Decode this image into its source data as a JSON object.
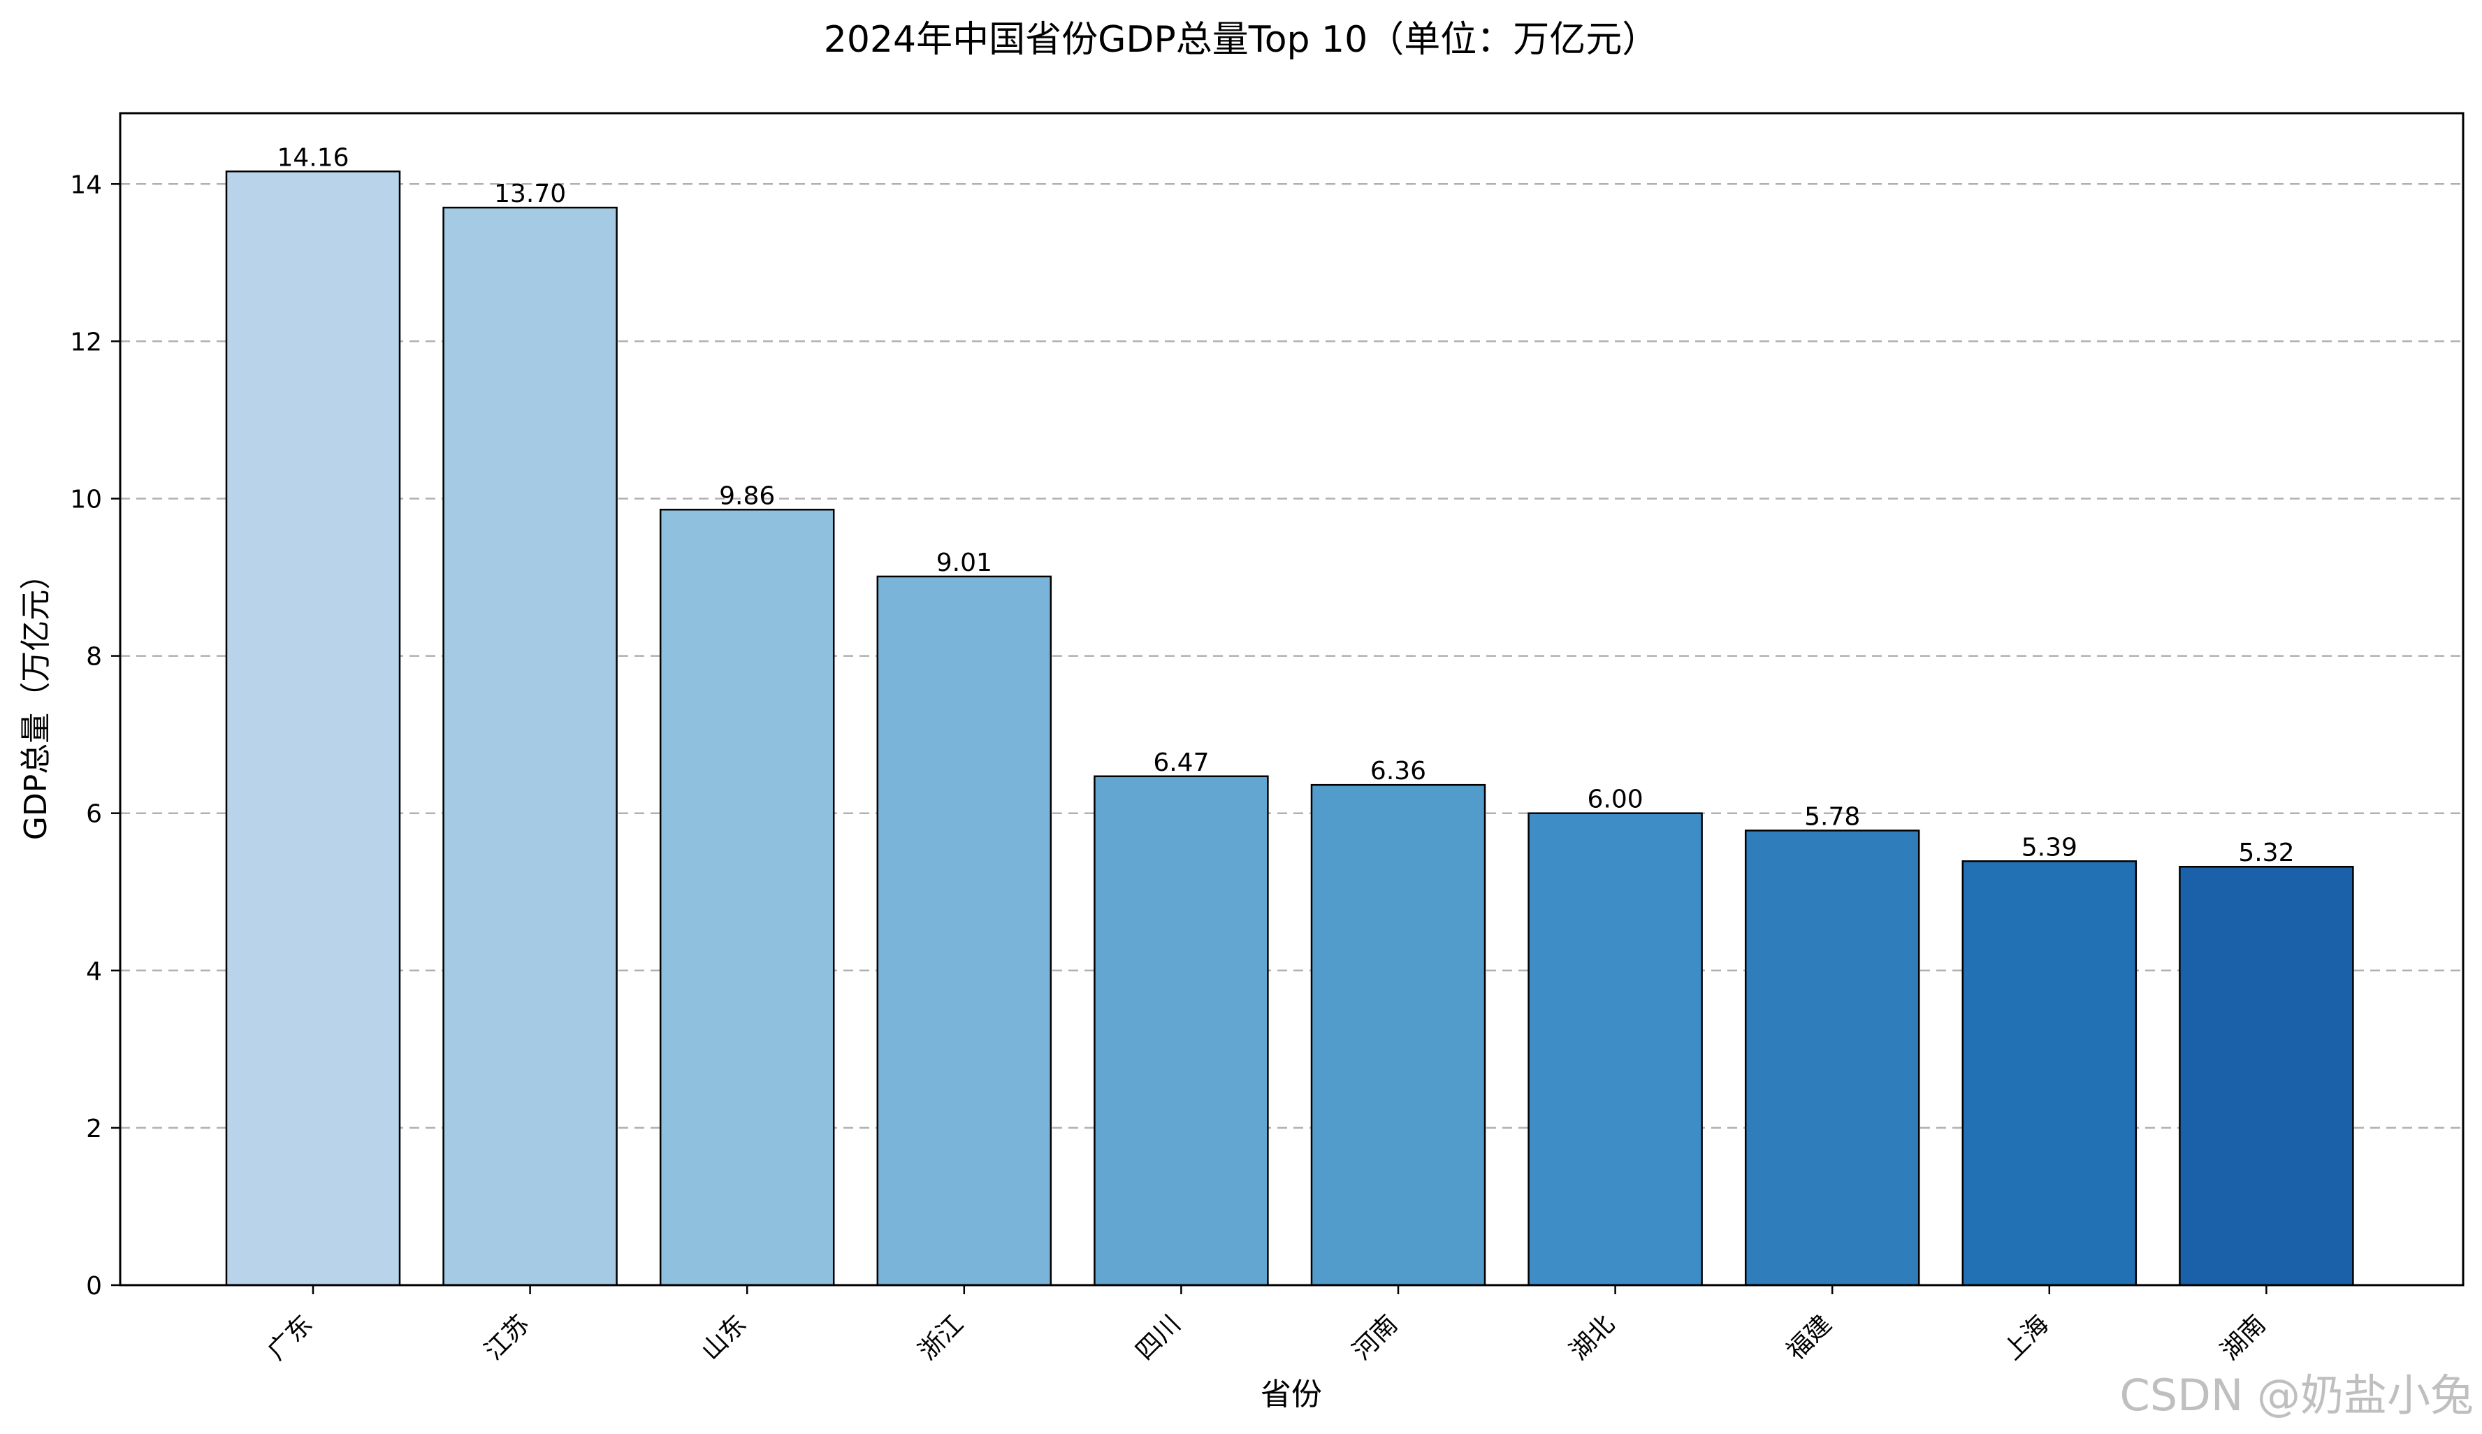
{
  "chart_data": {
    "type": "bar",
    "title": "2024年中国省份GDP总量Top 10（单位：万亿元）",
    "xlabel": "省份",
    "ylabel": "GDP总量（万亿元）",
    "categories": [
      "广东",
      "江苏",
      "山东",
      "浙江",
      "四川",
      "河南",
      "湖北",
      "福建",
      "上海",
      "湖南"
    ],
    "values": [
      14.16,
      13.7,
      9.86,
      9.01,
      6.47,
      6.36,
      6.0,
      5.78,
      5.39,
      5.32
    ],
    "value_labels": [
      "14.16",
      "13.70",
      "9.86",
      "9.01",
      "6.47",
      "6.36",
      "6.00",
      "5.78",
      "5.39",
      "5.32"
    ],
    "colors": [
      "#b8d3ea",
      "#a4cbe3",
      "#8fc0de",
      "#7ab5d9",
      "#63a6d2",
      "#529ccb",
      "#3f8dc6",
      "#2f7dbb",
      "#2271b4",
      "#1a61a9"
    ],
    "ylim": [
      0,
      14.9
    ],
    "yticks": [
      0,
      2,
      4,
      6,
      8,
      10,
      12,
      14
    ],
    "grid": "y-dashed",
    "tick_label_rotation": 45
  },
  "watermark": "CSDN @奶盐小兔"
}
